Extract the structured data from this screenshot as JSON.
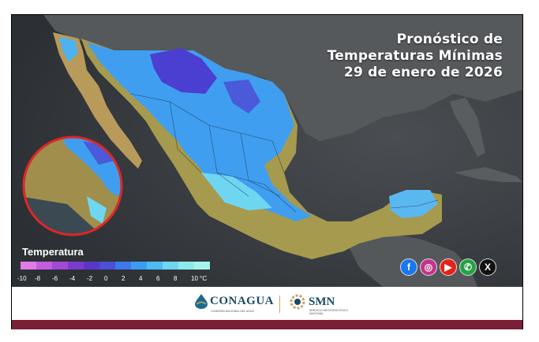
{
  "title": {
    "line1": "Pronóstico de",
    "line2": "Temperaturas Mínimas",
    "line3": "29 de enero de 2026"
  },
  "legend": {
    "title": "Temperatura",
    "ticks": [
      "-10",
      "-8",
      "-6",
      "-4",
      "-2",
      "0",
      "2",
      "4",
      "6",
      "8",
      "10 °C"
    ],
    "colors": [
      "#e07be8",
      "#c45cde",
      "#a04ad6",
      "#7a3ccf",
      "#5a36c9",
      "#4a50d8",
      "#3d78ec",
      "#3c9cf2",
      "#4cbaf5",
      "#6fd6f2",
      "#8eeaea",
      "#a8f2ee"
    ]
  },
  "map": {
    "ocean_color": "#3d4145",
    "land_dark_color": "#55585b",
    "warm_land_color": "#b89a5a",
    "cold_color": "#3f9ef0",
    "coldest_color": "#4a3fd0",
    "zoom_circle_border": "#e02626"
  },
  "social": [
    {
      "name": "facebook-icon",
      "glyph": "f",
      "color": "#1877f2"
    },
    {
      "name": "instagram-icon",
      "glyph": "◎",
      "color": "#c1358a"
    },
    {
      "name": "youtube-icon",
      "glyph": "▶",
      "color": "#e62117"
    },
    {
      "name": "whatsapp-icon",
      "glyph": "✆",
      "color": "#25a244"
    },
    {
      "name": "x-icon",
      "glyph": "X",
      "color": "#111111"
    }
  ],
  "footer": {
    "logo1_name": "CONAGUA",
    "logo1_sub": "COMISIÓN NACIONAL DEL AGUA",
    "logo2_name": "SMN",
    "logo2_sub": "SERVICIO METEOROLÓGICO NACIONAL",
    "bar_color": "#7a1f36"
  }
}
